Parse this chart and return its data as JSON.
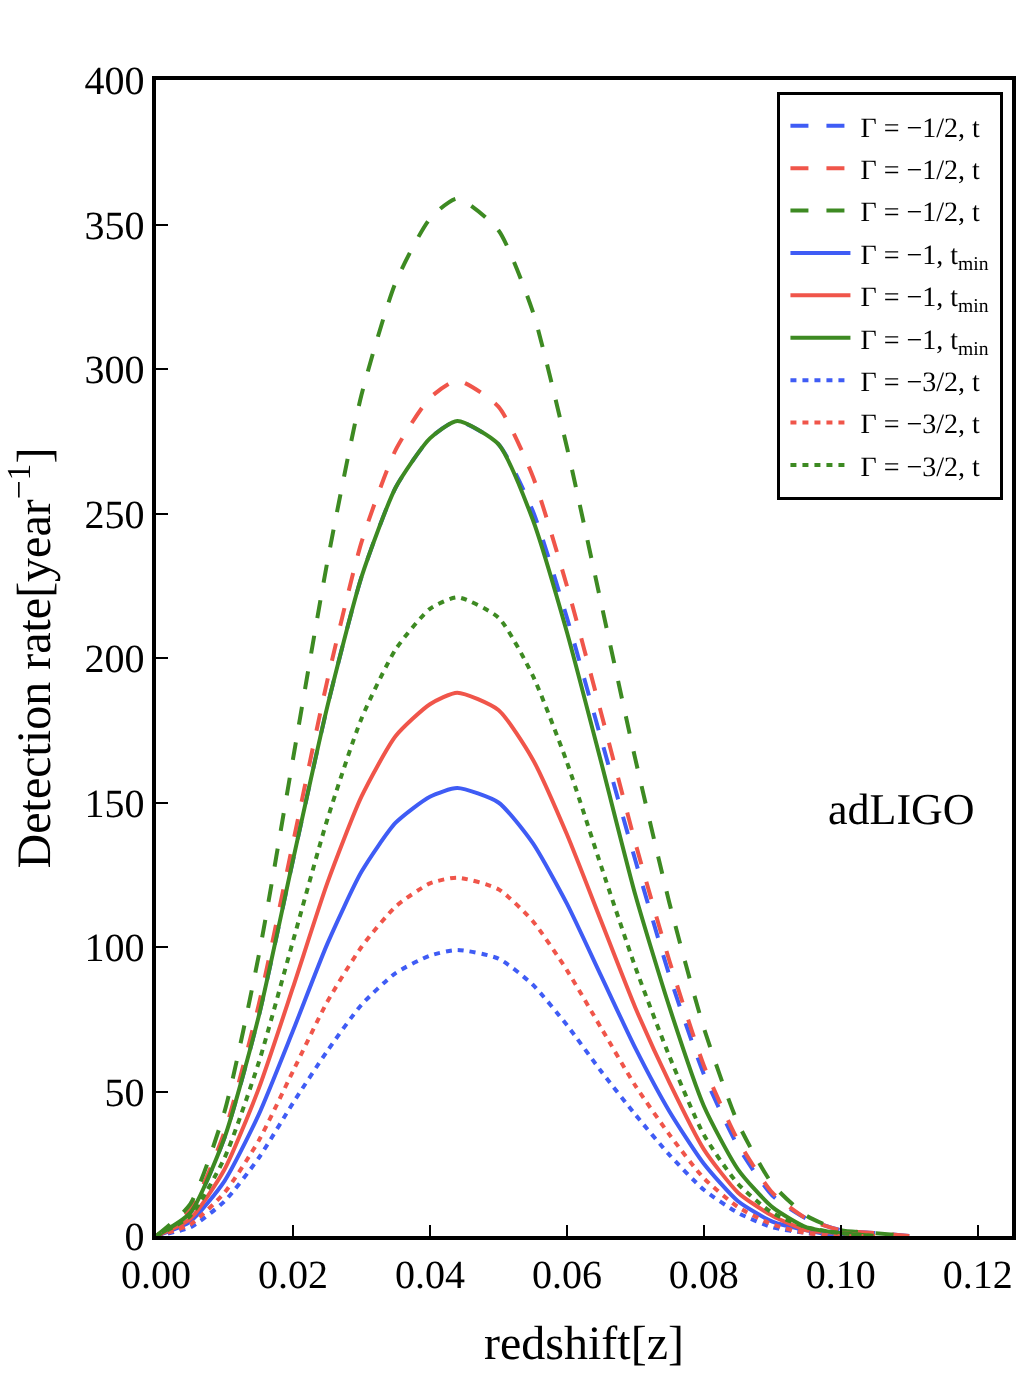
{
  "chart_data": {
    "type": "line",
    "xlabel": "redshift[z]",
    "ylabel": "Detection rate[year$^{−1}$]",
    "x": [
      0,
      0.005,
      0.01,
      0.015,
      0.02,
      0.025,
      0.03,
      0.035,
      0.04,
      0.044,
      0.05,
      0.055,
      0.06,
      0.065,
      0.07,
      0.075,
      0.08,
      0.085,
      0.09,
      0.095,
      0.1,
      0.105
    ],
    "xlim": [
      0,
      0.125
    ],
    "xticks": [
      {
        "value": 0,
        "label": "0.00"
      },
      0.02,
      0.04,
      0.06,
      0.08,
      {
        "value": 0.1,
        "label": "0.10"
      },
      0.12
    ],
    "ylim": [
      0,
      400
    ],
    "yticks": [
      0,
      50,
      100,
      150,
      200,
      250,
      300,
      350,
      400
    ],
    "legend": "top right",
    "annotations": [
      "adLIGO"
    ],
    "series": [
      {
        "name": "Γ = −1/2, t",
        "color": "#3f5cf5",
        "line_style": "dashed",
        "x": [
          0,
          0.005,
          0.01,
          0.015,
          0.02,
          0.025,
          0.03,
          0.035,
          0.04,
          0.044,
          0.05,
          0.055,
          0.06,
          0.065,
          0.07,
          0.075,
          0.08,
          0.085,
          0.09,
          0.095,
          0.1,
          0.105,
          0.11
        ],
        "values": [
          0,
          8,
          34,
          76,
          130,
          183,
          228,
          259,
          276,
          282,
          274,
          251,
          214,
          172,
          130,
          90,
          56,
          31,
          14,
          6,
          2,
          1,
          0
        ]
      },
      {
        "name": "Γ = −1/2, t",
        "color": "#f0554a",
        "line_style": "dashed",
        "x": [
          0,
          0.005,
          0.01,
          0.015,
          0.02,
          0.025,
          0.03,
          0.035,
          0.04,
          0.044,
          0.05,
          0.055,
          0.06,
          0.065,
          0.07,
          0.075,
          0.08,
          0.085,
          0.09,
          0.095,
          0.1,
          0.105,
          0.11
        ],
        "values": [
          0,
          9,
          36,
          80,
          136,
          192,
          240,
          272,
          290,
          296,
          287,
          263,
          225,
          181,
          136,
          95,
          59,
          33,
          15,
          6,
          2,
          1,
          0
        ]
      },
      {
        "name": "Γ = −1/2, t",
        "color": "#3d8a22",
        "line_style": "dashed",
        "x": [
          0,
          0.005,
          0.01,
          0.015,
          0.02,
          0.025,
          0.03,
          0.035,
          0.04,
          0.044,
          0.05,
          0.055,
          0.06,
          0.065,
          0.07,
          0.075,
          0.08,
          0.085,
          0.09,
          0.095,
          0.1,
          0.105,
          0.11
        ],
        "values": [
          0,
          11,
          43,
          97,
          165,
          233,
          291,
          330,
          352,
          359,
          348,
          320,
          273,
          219,
          165,
          115,
          72,
          39,
          18,
          7,
          2,
          1,
          0
        ]
      },
      {
        "name": "Γ = −1, t$_{min}$",
        "color": "#3f5cf5",
        "line_style": "solid",
        "values": [
          0,
          5,
          19,
          42,
          71,
          101,
          126,
          143,
          152,
          155,
          150,
          136,
          115,
          90,
          65,
          43,
          25,
          12,
          5,
          2,
          0,
          0
        ]
      },
      {
        "name": "Γ = −1, t$_{min}$",
        "color": "#f0554a",
        "line_style": "solid",
        "values": [
          0,
          6,
          23,
          51,
          86,
          122,
          152,
          173,
          184,
          188,
          182,
          165,
          139,
          109,
          79,
          53,
          30,
          15,
          7,
          2,
          1,
          0
        ]
      },
      {
        "name": "Γ = −1, t$_{min}$",
        "color": "#3d8a22",
        "line_style": "solid",
        "values": [
          0,
          8,
          34,
          76,
          130,
          183,
          228,
          259,
          276,
          282,
          274,
          248,
          209,
          164,
          118,
          79,
          45,
          23,
          10,
          3,
          1,
          0
        ]
      },
      {
        "name": "Γ = −3/2, t",
        "color": "#3f5cf5",
        "line_style": "dotted",
        "values": [
          0,
          3,
          12,
          27,
          46,
          64,
          80,
          91,
          97,
          99,
          96,
          87,
          73,
          57,
          42,
          28,
          16,
          8,
          3,
          1,
          0,
          0
        ]
      },
      {
        "name": "Γ = −3/2, t",
        "color": "#f0554a",
        "line_style": "dotted",
        "values": [
          0,
          4,
          15,
          33,
          57,
          81,
          100,
          114,
          122,
          124,
          120,
          109,
          92,
          72,
          52,
          35,
          20,
          10,
          4,
          1,
          0,
          0
        ]
      },
      {
        "name": "Γ = −3/2, t",
        "color": "#3d8a22",
        "line_style": "dotted",
        "values": [
          0,
          7,
          27,
          60,
          102,
          144,
          179,
          203,
          217,
          221,
          214,
          194,
          164,
          128,
          93,
          62,
          35,
          18,
          8,
          3,
          1,
          0
        ]
      }
    ]
  }
}
